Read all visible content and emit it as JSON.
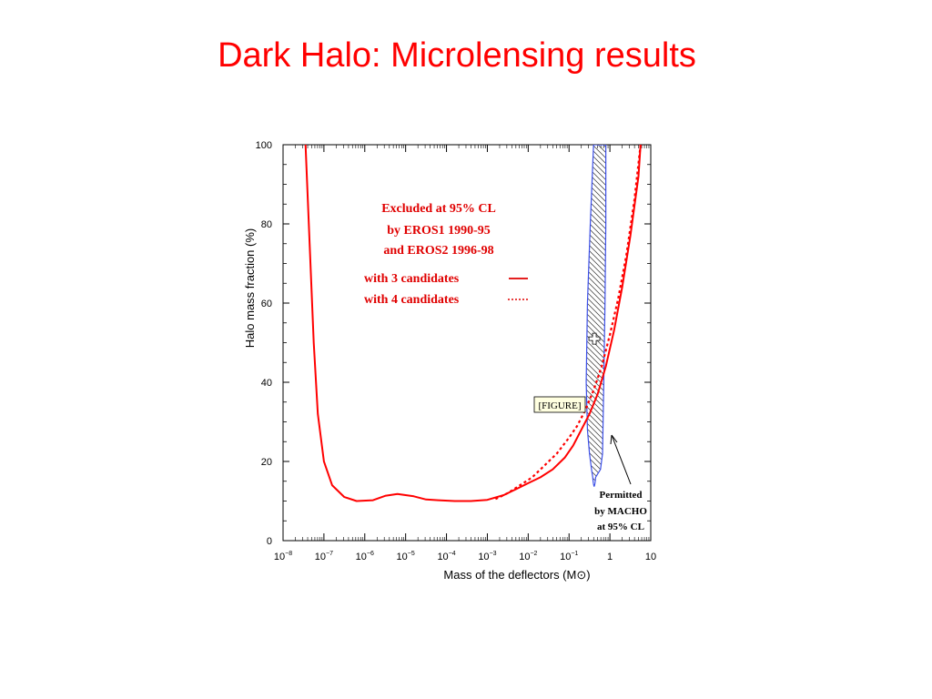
{
  "slide": {
    "title": "Dark Halo: Microlensing results"
  },
  "chart_data": {
    "type": "line",
    "xlabel": "Mass of the deflectors (M⊙)",
    "ylabel": "Halo mass fraction (%)",
    "xscale": "log",
    "xlim": [
      1e-08,
      10
    ],
    "ylim": [
      0,
      100
    ],
    "xticks": [
      {
        "value": 1e-08,
        "base": "10",
        "exp": "−8"
      },
      {
        "value": 1e-07,
        "base": "10",
        "exp": "−7"
      },
      {
        "value": 1e-06,
        "base": "10",
        "exp": "−6"
      },
      {
        "value": 1e-05,
        "base": "10",
        "exp": "−5"
      },
      {
        "value": 0.0001,
        "base": "10",
        "exp": "−4"
      },
      {
        "value": 0.001,
        "base": "10",
        "exp": "−3"
      },
      {
        "value": 0.01,
        "base": "10",
        "exp": "−2"
      },
      {
        "value": 0.1,
        "base": "10",
        "exp": "−1"
      },
      {
        "value": 1,
        "base": "1",
        "exp": ""
      },
      {
        "value": 10,
        "base": "10",
        "exp": ""
      }
    ],
    "yticks": [
      "0",
      "20",
      "40",
      "60",
      "80",
      "100"
    ],
    "series": [
      {
        "name": "with 3 candidates",
        "style": "solid",
        "color": "#ff0000",
        "log10x": [
          -7.45,
          -7.35,
          -7.25,
          -7.15,
          -7.0,
          -6.8,
          -6.5,
          -6.2,
          -5.8,
          -5.5,
          -5.2,
          -4.8,
          -4.5,
          -4.2,
          -3.8,
          -3.4,
          -3.0,
          -2.6,
          -2.3,
          -2.0,
          -1.7,
          -1.4,
          -1.1,
          -0.9,
          -0.7,
          -0.5,
          -0.3,
          -0.1,
          0.1,
          0.3,
          0.5,
          0.7,
          0.75
        ],
        "y": [
          100,
          75,
          50,
          32,
          20,
          14,
          11,
          10,
          10.2,
          11.3,
          11.8,
          11.2,
          10.4,
          10.2,
          10,
          10,
          10.3,
          11.5,
          13,
          14.5,
          16,
          18,
          21,
          24,
          28,
          32,
          37,
          44,
          53,
          64,
          77,
          92,
          100
        ]
      },
      {
        "name": "with 4 candidates",
        "style": "dotted",
        "color": "#ff0000",
        "log10x": [
          -2.8,
          -2.5,
          -2.2,
          -1.9,
          -1.6,
          -1.3,
          -1.0,
          -0.8,
          -0.6,
          -0.4,
          -0.2,
          0.0,
          0.2,
          0.4,
          0.6,
          0.75
        ],
        "y": [
          10.5,
          12,
          14,
          16,
          19,
          22,
          26,
          29,
          33,
          38,
          44,
          52,
          61,
          72,
          86,
          100
        ]
      }
    ],
    "macho_region": {
      "label": "Permitted by MACHO at 95% CL",
      "color": "#3b4fe8",
      "hatch": true,
      "left": {
        "log10x": [
          -0.4,
          -0.48,
          -0.55,
          -0.58,
          -0.55,
          -0.5,
          -0.45,
          -0.42
        ],
        "y": [
          100,
          80,
          60,
          40,
          28,
          22,
          18,
          16
        ]
      },
      "right": {
        "log10x": [
          -0.1,
          -0.1,
          -0.12,
          -0.15,
          -0.17,
          -0.18,
          -0.23,
          -0.35
        ],
        "y": [
          100,
          80,
          60,
          40,
          28,
          22,
          18,
          16
        ]
      }
    },
    "marker": {
      "log10x": -0.38,
      "y": 51
    },
    "annotations": {
      "excluded_lines": [
        "Excluded at 95% CL",
        "by   EROS1 1990-95",
        "and EROS2 1996-98"
      ],
      "legend_lines": [
        "with 3 candidates",
        "with 4 candidates"
      ],
      "permitted_lines": [
        "Permitted",
        "by MACHO",
        "at 95% CL"
      ],
      "figure_box": "[FIGURE]"
    }
  }
}
